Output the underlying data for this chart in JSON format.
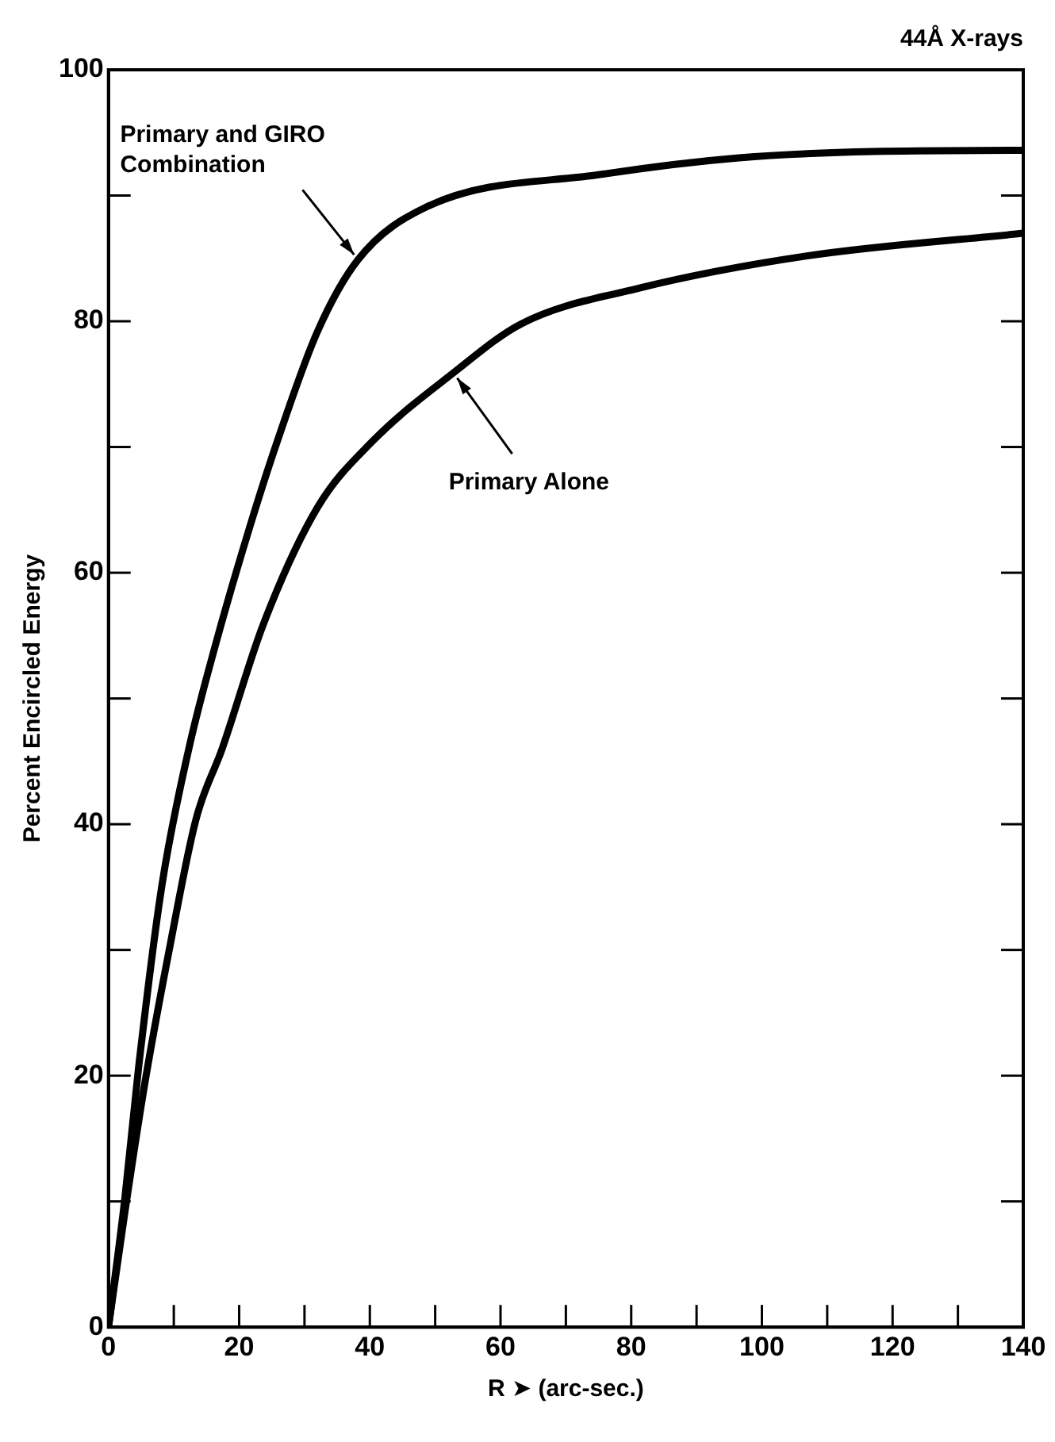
{
  "chart_data": {
    "type": "line",
    "title": "44Å X-rays",
    "xlabel": "R ➤ (arc-sec.)",
    "ylabel": "Percent Encircled Energy",
    "xlim": [
      0,
      140
    ],
    "ylim": [
      0,
      100
    ],
    "xticks": [
      0,
      {
        "value": 10,
        "label": null
      },
      20,
      {
        "value": 30,
        "label": null
      },
      40,
      {
        "value": 50,
        "label": null
      },
      60,
      {
        "value": 70,
        "label": null
      },
      80,
      {
        "value": 90,
        "label": null
      },
      100,
      {
        "value": 110,
        "label": null
      },
      120,
      {
        "value": 130,
        "label": null
      },
      140
    ],
    "yticks": [
      0,
      {
        "value": 10,
        "label": null
      },
      20,
      {
        "value": 30,
        "label": null
      },
      40,
      {
        "value": 50,
        "label": null
      },
      60,
      {
        "value": 70,
        "label": null
      },
      80,
      {
        "value": 90,
        "label": null
      },
      100
    ],
    "grid": false,
    "legend": false,
    "marker": "none",
    "line_style": "solid",
    "series": [
      {
        "color": "#000000",
        "x": [
          0,
          2.5,
          4.6,
          8.2,
          12.3,
          16.4,
          21.6,
          25.8,
          32,
          38.2,
          48.7,
          75.7,
          96.5,
          117,
          140
        ],
        "values": [
          0,
          10.2,
          20.6,
          35.2,
          46,
          54.3,
          63.6,
          70.4,
          79.2,
          84.9,
          89.1,
          91.7,
          93,
          93.5,
          93.6
        ]
      },
      {
        "color": "#000000",
        "x": [
          0,
          2.5,
          5.6,
          9.3,
          13.4,
          17.4,
          23.7,
          32,
          40.3,
          52.8,
          63.2,
          80.9,
          106.9,
          140
        ],
        "values": [
          0,
          9.1,
          19.5,
          30,
          40.4,
          46,
          55.9,
          65.2,
          70.4,
          75.9,
          79.8,
          82.6,
          85.2,
          87
        ]
      }
    ],
    "annotations": [
      {
        "text": "Primary and GIRO\nCombination",
        "x": 38.2,
        "y": 84.9
      },
      {
        "text": "Primary Alone",
        "x": 52.8,
        "y": 75.9
      }
    ]
  }
}
